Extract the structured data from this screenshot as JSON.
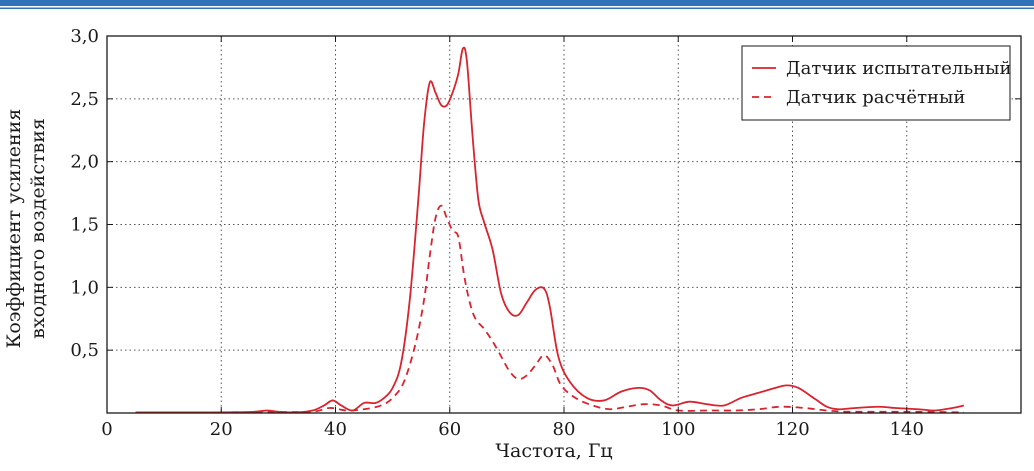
{
  "chart_data": {
    "type": "line",
    "title": "",
    "xlabel": "Частота, Гц",
    "ylabel_lines": [
      "Коэффициент усиления",
      "входного воздействия"
    ],
    "xlim": [
      0,
      160
    ],
    "ylim": [
      0,
      3.0
    ],
    "x_ticks": [
      0,
      20,
      40,
      60,
      80,
      100,
      120,
      140
    ],
    "x_tick_labels": [
      "0",
      "20",
      "40",
      "60",
      "80",
      "100",
      "120",
      "140"
    ],
    "y_ticks": [
      0.5,
      1.0,
      1.5,
      2.0,
      2.5,
      3.0
    ],
    "y_tick_labels": [
      "0,5",
      "1,0",
      "1,5",
      "2,0",
      "2,5",
      "3,0"
    ],
    "grid": true,
    "legend_position": "top-right",
    "series": [
      {
        "name": "Датчик испытательный",
        "style": "solid",
        "color": "#d9232e",
        "points": [
          [
            5,
            0.005
          ],
          [
            15,
            0.005
          ],
          [
            25,
            0.008
          ],
          [
            28,
            0.02
          ],
          [
            30,
            0.01
          ],
          [
            33,
            0.005
          ],
          [
            36,
            0.02
          ],
          [
            38,
            0.06
          ],
          [
            39.5,
            0.1
          ],
          [
            41,
            0.06
          ],
          [
            43,
            0.02
          ],
          [
            45,
            0.08
          ],
          [
            47,
            0.08
          ],
          [
            48.5,
            0.12
          ],
          [
            50,
            0.2
          ],
          [
            51.5,
            0.4
          ],
          [
            53,
            0.9
          ],
          [
            54.5,
            1.7
          ],
          [
            55.5,
            2.3
          ],
          [
            56.5,
            2.63
          ],
          [
            57.5,
            2.55
          ],
          [
            58.5,
            2.45
          ],
          [
            59.5,
            2.45
          ],
          [
            60.5,
            2.55
          ],
          [
            61.5,
            2.7
          ],
          [
            62.3,
            2.9
          ],
          [
            63,
            2.8
          ],
          [
            64,
            2.2
          ],
          [
            65,
            1.7
          ],
          [
            66,
            1.52
          ],
          [
            67.5,
            1.3
          ],
          [
            69,
            0.95
          ],
          [
            70.5,
            0.8
          ],
          [
            72,
            0.78
          ],
          [
            73.5,
            0.88
          ],
          [
            75,
            0.98
          ],
          [
            76.5,
            0.99
          ],
          [
            77.5,
            0.85
          ],
          [
            79,
            0.45
          ],
          [
            81,
            0.25
          ],
          [
            84,
            0.12
          ],
          [
            87,
            0.1
          ],
          [
            90,
            0.17
          ],
          [
            93,
            0.2
          ],
          [
            95,
            0.18
          ],
          [
            97,
            0.1
          ],
          [
            99,
            0.06
          ],
          [
            102,
            0.09
          ],
          [
            105,
            0.07
          ],
          [
            108,
            0.06
          ],
          [
            111,
            0.12
          ],
          [
            114,
            0.16
          ],
          [
            117,
            0.2
          ],
          [
            119,
            0.22
          ],
          [
            121,
            0.2
          ],
          [
            124,
            0.11
          ],
          [
            126,
            0.05
          ],
          [
            128,
            0.03
          ],
          [
            131,
            0.04
          ],
          [
            135,
            0.05
          ],
          [
            138,
            0.04
          ],
          [
            142,
            0.03
          ],
          [
            145,
            0.02
          ],
          [
            148,
            0.04
          ],
          [
            150,
            0.06
          ]
        ]
      },
      {
        "name": "Датчик расчётный",
        "style": "dashed",
        "color": "#d9232e",
        "points": [
          [
            5,
            0.005
          ],
          [
            20,
            0.005
          ],
          [
            30,
            0.008
          ],
          [
            36,
            0.01
          ],
          [
            39,
            0.04
          ],
          [
            42,
            0.02
          ],
          [
            45,
            0.03
          ],
          [
            48,
            0.06
          ],
          [
            50,
            0.12
          ],
          [
            52,
            0.25
          ],
          [
            54,
            0.55
          ],
          [
            55.5,
            0.9
          ],
          [
            56.5,
            1.25
          ],
          [
            57.5,
            1.55
          ],
          [
            58.5,
            1.65
          ],
          [
            59.5,
            1.55
          ],
          [
            60.5,
            1.45
          ],
          [
            61.5,
            1.4
          ],
          [
            62.5,
            1.1
          ],
          [
            63.5,
            0.88
          ],
          [
            64.5,
            0.75
          ],
          [
            66,
            0.67
          ],
          [
            67.5,
            0.57
          ],
          [
            69,
            0.45
          ],
          [
            70.5,
            0.33
          ],
          [
            72,
            0.27
          ],
          [
            73.5,
            0.3
          ],
          [
            75,
            0.38
          ],
          [
            76.5,
            0.46
          ],
          [
            78,
            0.38
          ],
          [
            79.5,
            0.22
          ],
          [
            82,
            0.12
          ],
          [
            85,
            0.06
          ],
          [
            88,
            0.03
          ],
          [
            91,
            0.05
          ],
          [
            94,
            0.07
          ],
          [
            97,
            0.06
          ],
          [
            100,
            0.02
          ],
          [
            105,
            0.02
          ],
          [
            110,
            0.02
          ],
          [
            114,
            0.03
          ],
          [
            118,
            0.05
          ],
          [
            122,
            0.04
          ],
          [
            126,
            0.02
          ],
          [
            130,
            0.01
          ],
          [
            140,
            0.01
          ],
          [
            150,
            0.005
          ]
        ]
      }
    ]
  }
}
